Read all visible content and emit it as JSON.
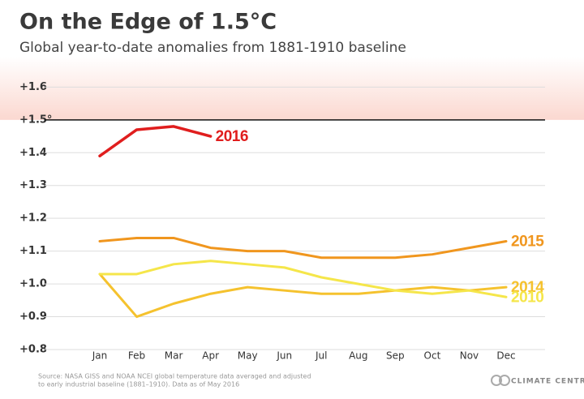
{
  "chart_data": {
    "type": "line",
    "title": "On the Edge of 1.5°C",
    "subtitle": "Global year-to-date anomalies from 1881-1910 baseline",
    "categories": [
      "Jan",
      "Feb",
      "Mar",
      "Apr",
      "May",
      "Jun",
      "Jul",
      "Aug",
      "Sep",
      "Oct",
      "Nov",
      "Dec"
    ],
    "series": [
      {
        "name": "2016",
        "color": "#e01e1e",
        "values": [
          1.39,
          1.47,
          1.48,
          1.45,
          null,
          null,
          null,
          null,
          null,
          null,
          null,
          null
        ]
      },
      {
        "name": "2015",
        "color": "#f0961e",
        "values": [
          1.13,
          1.14,
          1.14,
          1.11,
          1.1,
          1.1,
          1.08,
          1.08,
          1.08,
          1.09,
          1.11,
          1.13
        ]
      },
      {
        "name": "2014",
        "color": "#f5c22e",
        "values": [
          1.03,
          0.9,
          0.94,
          0.97,
          0.99,
          0.98,
          0.97,
          0.97,
          0.98,
          0.99,
          0.98,
          0.99
        ]
      },
      {
        "name": "2010",
        "color": "#f5e64a",
        "values": [
          1.03,
          1.03,
          1.06,
          1.07,
          1.06,
          1.05,
          1.02,
          1.0,
          0.98,
          0.97,
          0.98,
          0.96
        ]
      }
    ],
    "ylim": [
      0.8,
      1.68
    ],
    "yticks": [
      {
        "value": 0.8,
        "label": "+0.8"
      },
      {
        "value": 0.9,
        "label": "+0.9"
      },
      {
        "value": 1.0,
        "label": "+1.0"
      },
      {
        "value": 1.1,
        "label": "+1.1"
      },
      {
        "value": 1.2,
        "label": "+1.2"
      },
      {
        "value": 1.3,
        "label": "+1.3"
      },
      {
        "value": 1.4,
        "label": "+1.4"
      },
      {
        "value": 1.5,
        "label": "+1.5°"
      },
      {
        "value": 1.6,
        "label": "+1.6"
      }
    ],
    "threshold": 1.5,
    "grid": true,
    "source": [
      "Source: NASA GISS and NOAA NCEI global temperature data averaged and adjusted",
      "to early industrial baseline (1881–1910). Data as of May 2016"
    ],
    "logo": "CLIMATE CENTRAL"
  }
}
